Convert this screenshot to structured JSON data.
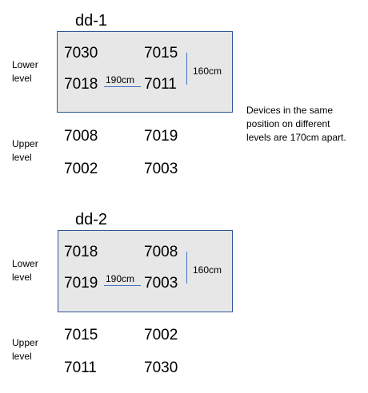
{
  "layout_sets": [
    {
      "title": "dd-1",
      "lower_label": [
        "Lower",
        "level"
      ],
      "upper_label": [
        "Upper",
        "level"
      ],
      "lower": {
        "top_left": "7030",
        "top_right": "7015",
        "bottom_left": "7018",
        "bottom_right": "7011"
      },
      "upper": {
        "top_left": "7008",
        "top_right": "7019",
        "bottom_left": "7002",
        "bottom_right": "7003"
      },
      "horizontal_spacing": "190cm",
      "vertical_spacing": "160cm"
    },
    {
      "title": "dd-2",
      "lower_label": [
        "Lower",
        "level"
      ],
      "upper_label": [
        "Upper",
        "level"
      ],
      "lower": {
        "top_left": "7018",
        "top_right": "7008",
        "bottom_left": "7019",
        "bottom_right": "7003"
      },
      "upper": {
        "top_left": "7015",
        "top_right": "7002",
        "bottom_left": "7011",
        "bottom_right": "7030"
      },
      "horizontal_spacing": "190cm",
      "vertical_spacing": "160cm"
    }
  ],
  "note": [
    "Devices in the same",
    "position on different",
    "levels are 170cm apart."
  ],
  "colors": {
    "box_fill": "#e7e7e7",
    "box_border": "#2f5597",
    "dimension_line": "#4472c4"
  }
}
